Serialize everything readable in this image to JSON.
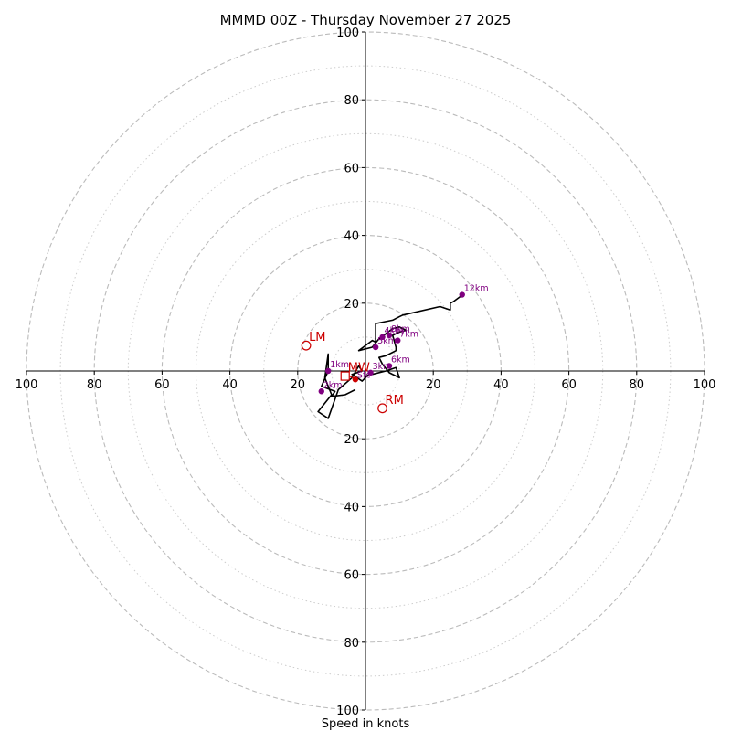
{
  "chart_data": {
    "type": "hodograph",
    "title": "MMMD 00Z - Thursday November 27 2025",
    "xlabel": "Speed in knots",
    "speed_max": 100,
    "ring_major": [
      20,
      40,
      60,
      80,
      100
    ],
    "ring_minor": [
      10,
      30,
      50,
      70,
      90
    ],
    "tick_labels": [
      "100",
      "80",
      "60",
      "40",
      "20",
      "20",
      "40",
      "60",
      "80",
      "100"
    ],
    "tick_values": [
      -100,
      -80,
      -60,
      -40,
      -20,
      20,
      40,
      60,
      80,
      100
    ],
    "hodograph_trace": [
      [
        -3,
        -5.5
      ],
      [
        -6,
        -7
      ],
      [
        -10,
        -7.5
      ],
      [
        -9,
        -6
      ],
      [
        -13,
        -4.5
      ],
      [
        -11,
        0
      ],
      [
        -11,
        5
      ],
      [
        -12,
        -2
      ],
      [
        -10,
        -7
      ],
      [
        -14,
        -12
      ],
      [
        -11,
        -14
      ],
      [
        -8,
        -5.5
      ],
      [
        -4,
        -2
      ],
      [
        -2,
        1.5
      ],
      [
        -1,
        0
      ],
      [
        -4,
        -1
      ],
      [
        -1,
        -3
      ],
      [
        1,
        -1
      ],
      [
        2,
        -1
      ],
      [
        6,
        0
      ],
      [
        9,
        1
      ],
      [
        10,
        -2
      ],
      [
        7,
        -0.5
      ],
      [
        5,
        2
      ],
      [
        4,
        4
      ],
      [
        6,
        4.5
      ],
      [
        8,
        5.5
      ],
      [
        9,
        6
      ],
      [
        9,
        7
      ],
      [
        8,
        10.5
      ],
      [
        10,
        11.5
      ],
      [
        12,
        12
      ],
      [
        10,
        13
      ],
      [
        8,
        12.5
      ],
      [
        6,
        11
      ],
      [
        4,
        9.5
      ],
      [
        2,
        7
      ],
      [
        -2,
        6
      ],
      [
        2,
        9
      ],
      [
        3,
        8.5
      ],
      [
        3,
        14
      ],
      [
        8,
        15
      ],
      [
        10,
        16
      ],
      [
        11,
        16.5
      ],
      [
        22,
        19
      ],
      [
        25,
        18
      ],
      [
        25,
        20
      ],
      [
        26,
        20.5
      ],
      [
        28,
        22
      ],
      [
        28.5,
        22.5
      ]
    ],
    "height_points": [
      {
        "label": "1km",
        "u": -11,
        "v": 0
      },
      {
        "label": "2km",
        "u": -13,
        "v": -6
      },
      {
        "label": "3km",
        "u": 1.5,
        "v": -0.5
      },
      {
        "label": "4km",
        "u": 5,
        "v": 10
      },
      {
        "label": "5km",
        "u": 3,
        "v": 7
      },
      {
        "label": "6km",
        "u": 7,
        "v": 1.5
      },
      {
        "label": "7km",
        "u": 9.5,
        "v": 9
      },
      {
        "label": "8km",
        "u": 7,
        "v": 10.5
      },
      {
        "label": "12km",
        "u": 28.5,
        "v": 22.5
      }
    ],
    "motion_markers": [
      {
        "label": "LM",
        "u": -17.5,
        "v": 7.5,
        "shape": "circle"
      },
      {
        "label": "RM",
        "u": 5,
        "v": -11,
        "shape": "circle"
      },
      {
        "label": "MW",
        "u": -6,
        "v": -1.5,
        "shape": "square"
      }
    ],
    "sfc_point": {
      "label": "Sfc",
      "u": -3,
      "v": -2.5
    },
    "colors": {
      "ring": "#bbbbbb",
      "minor_ring": "#cccccc",
      "trace": "#000000",
      "height": "#800080",
      "motion": "#cc0000"
    }
  }
}
